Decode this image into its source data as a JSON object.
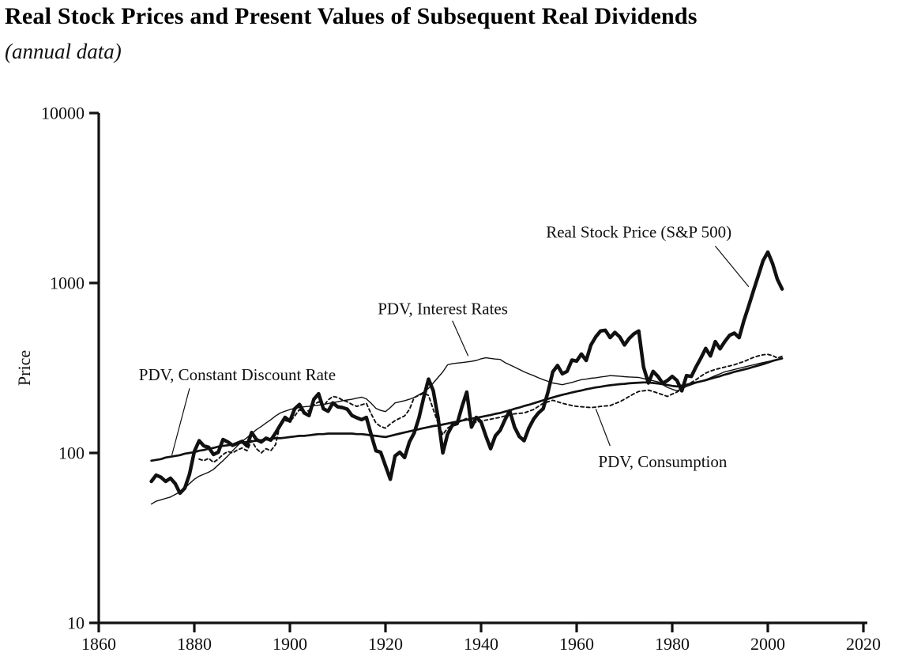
{
  "document": {
    "title": "Real Stock Prices and Present Values of Subsequent Real Dividends",
    "subtitle": "(annual data)"
  },
  "chart_data": {
    "type": "line",
    "title": "Real Stock Prices and Present Values of Subsequent Real Dividends",
    "subtitle": "(annual data)",
    "xlabel": "",
    "ylabel": "Price",
    "y_scale": "log",
    "ylim": [
      10,
      10000
    ],
    "yticks": [
      10,
      100,
      1000,
      10000
    ],
    "xlim": [
      1860,
      2020
    ],
    "xticks": [
      1860,
      1880,
      1900,
      1920,
      1940,
      1960,
      1980,
      2000,
      2020
    ],
    "grid": false,
    "legend_position": "inline-annotations",
    "line_color": "#111111",
    "x": [
      1871,
      1872,
      1873,
      1874,
      1875,
      1876,
      1877,
      1878,
      1879,
      1880,
      1881,
      1882,
      1883,
      1884,
      1885,
      1886,
      1887,
      1888,
      1889,
      1890,
      1891,
      1892,
      1893,
      1894,
      1895,
      1896,
      1897,
      1898,
      1899,
      1900,
      1901,
      1902,
      1903,
      1904,
      1905,
      1906,
      1907,
      1908,
      1909,
      1910,
      1911,
      1912,
      1913,
      1914,
      1915,
      1916,
      1917,
      1918,
      1919,
      1920,
      1921,
      1922,
      1923,
      1924,
      1925,
      1926,
      1927,
      1928,
      1929,
      1930,
      1931,
      1932,
      1933,
      1934,
      1935,
      1936,
      1937,
      1938,
      1939,
      1940,
      1941,
      1942,
      1943,
      1944,
      1945,
      1946,
      1947,
      1948,
      1949,
      1950,
      1951,
      1952,
      1953,
      1954,
      1955,
      1956,
      1957,
      1958,
      1959,
      1960,
      1961,
      1962,
      1963,
      1964,
      1965,
      1966,
      1967,
      1968,
      1969,
      1970,
      1971,
      1972,
      1973,
      1974,
      1975,
      1976,
      1977,
      1978,
      1979,
      1980,
      1981,
      1982,
      1983,
      1984,
      1985,
      1986,
      1987,
      1988,
      1989,
      1990,
      1991,
      1992,
      1993,
      1994,
      1995,
      1996,
      1997,
      1998,
      1999,
      2000,
      2001,
      2002,
      2003
    ],
    "series": [
      {
        "name": "Real Stock Price (S&P 500)",
        "line_style": "solid-thick",
        "stroke_width": 4.5,
        "dash": null,
        "values": [
          68,
          74,
          72,
          68,
          71,
          66,
          58,
          62,
          75,
          102,
          118,
          110,
          108,
          98,
          101,
          120,
          116,
          111,
          114,
          117,
          110,
          132,
          120,
          116,
          122,
          119,
          131,
          146,
          162,
          154,
          182,
          193,
          172,
          166,
          207,
          223,
          182,
          176,
          197,
          187,
          185,
          181,
          166,
          161,
          157,
          162,
          128,
          103,
          101,
          84,
          70,
          96,
          101,
          94,
          116,
          131,
          161,
          212,
          272,
          232,
          162,
          100,
          129,
          146,
          149,
          187,
          228,
          142,
          162,
          152,
          126,
          106,
          126,
          136,
          157,
          177,
          142,
          125,
          118,
          140,
          158,
          172,
          182,
          228,
          300,
          327,
          292,
          302,
          352,
          347,
          382,
          350,
          432,
          482,
          522,
          527,
          477,
          512,
          482,
          432,
          472,
          502,
          522,
          320,
          258,
          302,
          282,
          257,
          267,
          282,
          267,
          232,
          285,
          282,
          322,
          362,
          412,
          372,
          452,
          410,
          452,
          492,
          507,
          477,
          602,
          732,
          902,
          1102,
          1352,
          1520,
          1302,
          1052,
          922
        ]
      },
      {
        "name": "PDV, Constant Discount Rate",
        "line_style": "solid-medium",
        "stroke_width": 2.7,
        "dash": null,
        "values": [
          90,
          91,
          92,
          94,
          95,
          96,
          97,
          99,
          100,
          101,
          103,
          104,
          106,
          107,
          109,
          110,
          111,
          112,
          114,
          115,
          116,
          117,
          118,
          119,
          120,
          121,
          122,
          122,
          123,
          124,
          125,
          126,
          126,
          127,
          128,
          129,
          129,
          130,
          130,
          130,
          130,
          130,
          130,
          129,
          129,
          128,
          127,
          126,
          125,
          124,
          126,
          128,
          130,
          132,
          134,
          136,
          138,
          140,
          142,
          144,
          145,
          147,
          149,
          151,
          153,
          155,
          157,
          159,
          161,
          163,
          165,
          167,
          170,
          172,
          175,
          178,
          182,
          185,
          189,
          192,
          196,
          200,
          204,
          208,
          212,
          216,
          220,
          223,
          227,
          230,
          233,
          237,
          240,
          243,
          245,
          248,
          250,
          252,
          254,
          255,
          257,
          258,
          259,
          260,
          260,
          258,
          256,
          254,
          251,
          248,
          246,
          249,
          252,
          256,
          260,
          264,
          268,
          273,
          278,
          283,
          289,
          294,
          300,
          305,
          310,
          315,
          321,
          327,
          333,
          340,
          348,
          354,
          360
        ]
      },
      {
        "name": "PDV, Interest Rates",
        "line_style": "solid-thin",
        "stroke_width": 1.4,
        "dash": null,
        "values": [
          50,
          52,
          53,
          54,
          55,
          57,
          59,
          62,
          66,
          70,
          73,
          75,
          77,
          80,
          85,
          90,
          96,
          103,
          110,
          117,
          123,
          130,
          137,
          143,
          150,
          157,
          165,
          172,
          176,
          180,
          183,
          185,
          187,
          188,
          190,
          191,
          193,
          195,
          198,
          200,
          203,
          205,
          207,
          210,
          213,
          208,
          196,
          183,
          178,
          175,
          185,
          197,
          200,
          203,
          207,
          212,
          220,
          228,
          240,
          258,
          278,
          300,
          330,
          335,
          338,
          340,
          343,
          346,
          350,
          358,
          363,
          360,
          357,
          355,
          340,
          330,
          320,
          310,
          300,
          292,
          285,
          277,
          270,
          264,
          258,
          255,
          252,
          256,
          260,
          265,
          270,
          272,
          275,
          277,
          280,
          282,
          285,
          284,
          283,
          281,
          280,
          279,
          278,
          274,
          270,
          266,
          262,
          252,
          243,
          237,
          232,
          238,
          246,
          252,
          258,
          264,
          270,
          277,
          285,
          292,
          300,
          305,
          310,
          315,
          320,
          325,
          330,
          335,
          340,
          345,
          350,
          355,
          360
        ]
      },
      {
        "name": "PDV, Consumption",
        "line_style": "dashed",
        "stroke_width": 1.9,
        "dash": [
          4,
          3.5
        ],
        "values": [
          null,
          null,
          null,
          null,
          null,
          null,
          null,
          null,
          null,
          null,
          92,
          90,
          93,
          88,
          92,
          98,
          102,
          100,
          104,
          107,
          103,
          118,
          106,
          100,
          106,
          103,
          112,
          150,
          155,
          153,
          165,
          180,
          172,
          178,
          192,
          200,
          188,
          205,
          215,
          212,
          205,
          200,
          193,
          188,
          192,
          196,
          170,
          150,
          143,
          140,
          148,
          155,
          160,
          165,
          180,
          212,
          218,
          225,
          218,
          180,
          150,
          128,
          140,
          146,
          150,
          155,
          160,
          150,
          152,
          154,
          156,
          158,
          160,
          162,
          165,
          168,
          170,
          171,
          172,
          176,
          180,
          188,
          196,
          200,
          204,
          200,
          196,
          193,
          190,
          188,
          187,
          186,
          185,
          186,
          188,
          189,
          190,
          195,
          200,
          207,
          215,
          223,
          230,
          232,
          234,
          230,
          225,
          220,
          215,
          222,
          228,
          238,
          250,
          260,
          270,
          283,
          295,
          303,
          310,
          315,
          320,
          325,
          330,
          338,
          345,
          355,
          365,
          372,
          378,
          380,
          374,
          362,
          370
        ]
      }
    ],
    "annotations": [
      {
        "text": "Real Stock Price (S&P 500)",
        "x": 1973,
        "y": 2000,
        "leader": [
          [
            1989,
            1650
          ],
          [
            1996,
            950
          ]
        ]
      },
      {
        "text": "PDV, Interest Rates",
        "x": 1932,
        "y": 710,
        "leader": [
          [
            1934,
            600
          ],
          [
            1937.3,
            372
          ]
        ]
      },
      {
        "text": "PDV, Constant Discount Rate",
        "x": 1889,
        "y": 290,
        "leader": [
          [
            1879,
            240
          ],
          [
            1875.3,
            97
          ]
        ]
      },
      {
        "text": "PDV, Consumption",
        "x": 1978,
        "y": 89,
        "leader": [
          [
            1967,
            110
          ],
          [
            1964,
            182
          ]
        ]
      }
    ]
  }
}
